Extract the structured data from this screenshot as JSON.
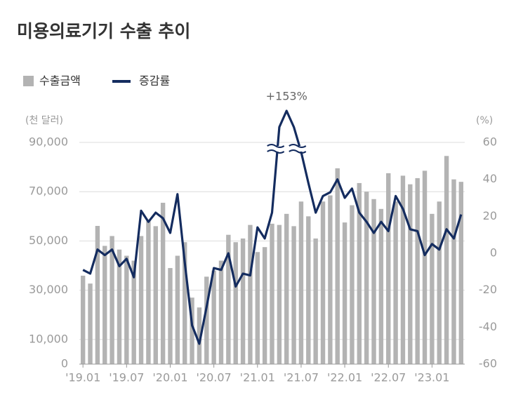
{
  "chart_data": {
    "type": "bar_line",
    "title": "미용의료기기 수출 추이",
    "y_label": "(천 달러)",
    "y2_label": "(%)",
    "categories": [
      "'19.01",
      null,
      null,
      null,
      null,
      null,
      "'19.07",
      null,
      null,
      null,
      null,
      null,
      "'20.01",
      null,
      null,
      null,
      null,
      null,
      "'20.07",
      null,
      null,
      null,
      null,
      null,
      "'21.01",
      null,
      null,
      null,
      null,
      null,
      "'21.07",
      null,
      null,
      null,
      null,
      null,
      "'22.01",
      null,
      null,
      null,
      null,
      null,
      "'22.07",
      null,
      null,
      null,
      null,
      null,
      "'23.01",
      null,
      null,
      null,
      null
    ],
    "series": [
      {
        "name": "수출금액",
        "color": "#b3b3b3",
        "values": [
          35900,
          32700,
          56100,
          48000,
          52000,
          46500,
          44000,
          42000,
          52000,
          58000,
          56000,
          65500,
          39000,
          44000,
          49500,
          27000,
          23000,
          35500,
          38000,
          42000,
          52500,
          49500,
          51000,
          56500,
          45500,
          47500,
          57000,
          56500,
          61000,
          56000,
          66000,
          60000,
          51000,
          66000,
          68500,
          79500,
          57500,
          64500,
          73500,
          70000,
          67000,
          63000,
          77500,
          66000,
          76500,
          73000,
          75500,
          78500,
          61000,
          66000,
          84500,
          75000,
          74000
        ]
      },
      {
        "name": "증감률",
        "color": "#142c5f",
        "axis": "y2",
        "values": [
          -9,
          -11,
          2,
          -1,
          2,
          -7,
          -3,
          -13,
          23,
          17,
          22,
          19,
          11,
          32,
          -5,
          -39,
          -49,
          -29,
          -8,
          -9,
          0,
          -18,
          -11,
          -12,
          14,
          8,
          22,
          95,
          153,
          95,
          55,
          38,
          22,
          31,
          33,
          40,
          30,
          35,
          22,
          17,
          11,
          17,
          12,
          31,
          24,
          13,
          12,
          -1,
          5,
          2,
          13,
          8,
          21
        ],
        "value_labels": [
          null,
          null,
          null,
          null,
          null,
          null,
          null,
          null,
          null,
          null,
          null,
          null,
          null,
          null,
          null,
          null,
          null,
          null,
          null,
          null,
          null,
          null,
          null,
          null,
          null,
          null,
          null,
          null,
          "+153%",
          null,
          null,
          null,
          null,
          null,
          null,
          null,
          null,
          null,
          null,
          null,
          null,
          null,
          null,
          null,
          null,
          null,
          null,
          null,
          null,
          null,
          null,
          null,
          null
        ]
      }
    ],
    "ylim": [
      0,
      90000
    ],
    "yticks": [
      0,
      {
        "value": 10000,
        "label": "10,000"
      },
      {
        "value": 30000,
        "label": "30,000"
      },
      {
        "value": 50000,
        "label": "50,000"
      },
      {
        "value": 70000,
        "label": "70,000"
      },
      {
        "value": 90000,
        "label": "90,000"
      }
    ],
    "y2lim": [
      -60,
      60
    ],
    "y2ticks": [
      -60,
      -40,
      -20,
      0,
      20,
      40,
      60
    ],
    "grid": true
  }
}
